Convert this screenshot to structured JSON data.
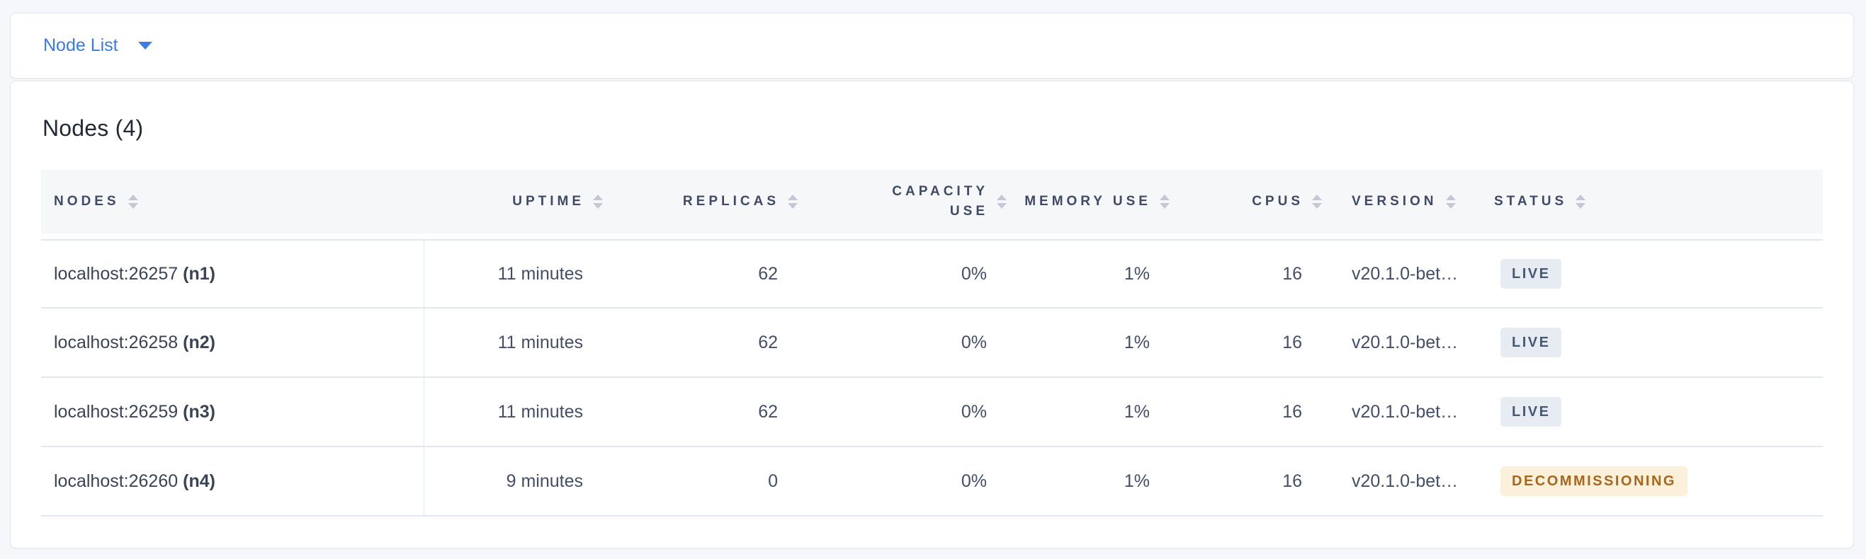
{
  "page": {
    "background_color": "#f5f7fa",
    "accent_color": "#3a7de8"
  },
  "selector_bar": {
    "label": "Node List",
    "caret_icon": "caret-down-icon"
  },
  "content": {
    "title": "Nodes (4)",
    "table": {
      "columns": [
        {
          "key": "nodes",
          "label": "Nodes",
          "align": "left",
          "sortable": true,
          "wrap": false
        },
        {
          "key": "uptime",
          "label": "Uptime",
          "align": "right",
          "sortable": true,
          "wrap": false
        },
        {
          "key": "replicas",
          "label": "Replicas",
          "align": "right",
          "sortable": true,
          "wrap": false
        },
        {
          "key": "capacity",
          "label": "Capacity Use",
          "align": "right",
          "sortable": true,
          "wrap": true
        },
        {
          "key": "memory",
          "label": "Memory Use",
          "align": "right",
          "sortable": true,
          "wrap": false
        },
        {
          "key": "cpus",
          "label": "CPUs",
          "align": "right",
          "sortable": true,
          "wrap": false
        },
        {
          "key": "version",
          "label": "Version",
          "align": "left",
          "sortable": true,
          "wrap": false
        },
        {
          "key": "status",
          "label": "Status",
          "align": "left",
          "sortable": true,
          "wrap": false
        }
      ],
      "sort_icon": "sort-arrows-icon",
      "rows": [
        {
          "address": "localhost:26257",
          "node_id": "(n1)",
          "uptime": "11 minutes",
          "replicas": "62",
          "capacity": "0%",
          "memory": "1%",
          "cpus": "16",
          "version": "v20.1.0-bet…",
          "status": "LIVE",
          "status_type": "live"
        },
        {
          "address": "localhost:26258",
          "node_id": "(n2)",
          "uptime": "11 minutes",
          "replicas": "62",
          "capacity": "0%",
          "memory": "1%",
          "cpus": "16",
          "version": "v20.1.0-bet…",
          "status": "LIVE",
          "status_type": "live"
        },
        {
          "address": "localhost:26259",
          "node_id": "(n3)",
          "uptime": "11 minutes",
          "replicas": "62",
          "capacity": "0%",
          "memory": "1%",
          "cpus": "16",
          "version": "v20.1.0-bet…",
          "status": "LIVE",
          "status_type": "live"
        },
        {
          "address": "localhost:26260",
          "node_id": "(n4)",
          "uptime": "9 minutes",
          "replicas": "0",
          "capacity": "0%",
          "memory": "1%",
          "cpus": "16",
          "version": "v20.1.0-bet…",
          "status": "DECOMMISSIONING",
          "status_type": "decommissioning"
        }
      ],
      "status_styles": {
        "live": {
          "bg": "#e7ebf2",
          "color": "#475872"
        },
        "decommissioning": {
          "bg": "#fbf0da",
          "color": "#a8671d"
        }
      }
    }
  }
}
